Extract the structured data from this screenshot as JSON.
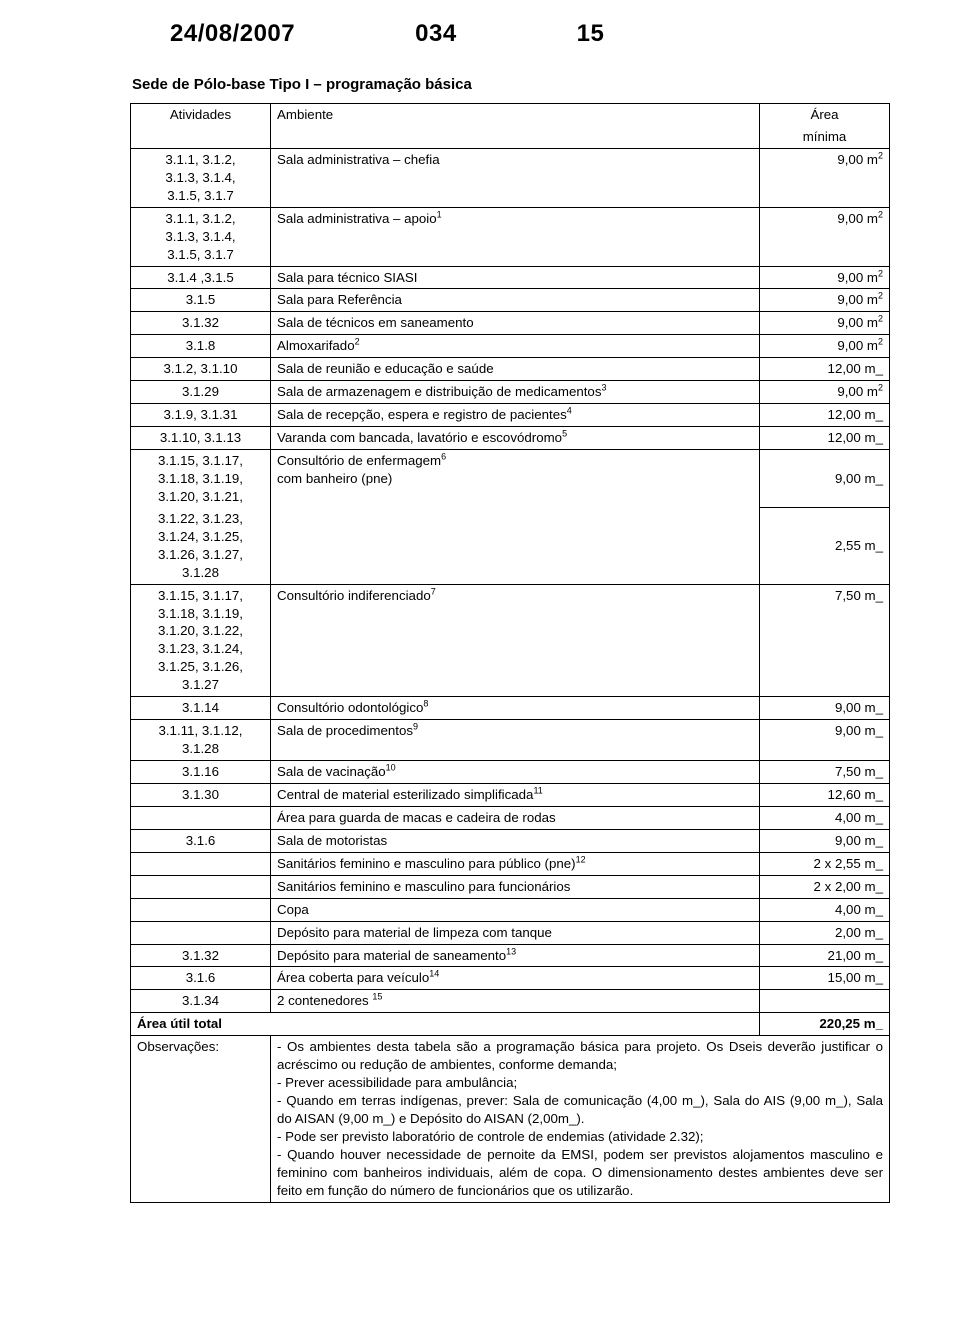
{
  "header": {
    "date": "24/08/2007",
    "doc_no": "034",
    "page": "15"
  },
  "section_title": "Sede de Pólo-base Tipo I – programação básica",
  "columns": {
    "c0": "Atividades",
    "c1": "Ambiente",
    "c2_top": "Área",
    "c2_bottom": "mínima"
  },
  "rows": [
    {
      "act_lines": [
        "3.1.1, 3.1.2,",
        "3.1.3, 3.1.4,",
        "3.1.5, 3.1.7"
      ],
      "amb": "Sala administrativa – chefia",
      "area": "9,00 m",
      "sup": "2"
    },
    {
      "act_lines": [
        "3.1.1, 3.1.2,",
        "3.1.3, 3.1.4,",
        "3.1.5, 3.1.7"
      ],
      "amb": "Sala administrativa – apoio",
      "amb_sup": "1",
      "area": "9,00 m",
      "sup": "2"
    },
    {
      "act": "3.1.4 ,3.1.5",
      "amb": "Sala para técnico SIASI",
      "area": "9,00 m",
      "sup": "2"
    },
    {
      "act": "3.1.5",
      "amb": "Sala para Referência",
      "area": "9,00 m",
      "sup": "2"
    },
    {
      "act": "3.1.32",
      "amb": "Sala de técnicos em saneamento",
      "area": "9,00 m",
      "sup": "2"
    },
    {
      "act": "3.1.8",
      "amb": "Almoxarifado",
      "amb_sup": "2",
      "area": "9,00 m",
      "sup": "2"
    },
    {
      "act": "3.1.2, 3.1.10",
      "amb": "Sala de reunião e educação e saúde",
      "area": "12,00 m_"
    },
    {
      "act": "3.1.29",
      "amb": "Sala de armazenagem e distribuição de medicamentos",
      "amb_sup": "3",
      "area": "9,00 m",
      "sup": "2"
    },
    {
      "act": "3.1.9, 3.1.31",
      "amb": "Sala de recepção, espera e registro de pacientes",
      "amb_sup": "4",
      "area": "12,00 m_"
    },
    {
      "act": "3.1.10, 3.1.13",
      "amb": "Varanda com bancada, lavatório e escovódromo",
      "amb_sup": "5",
      "area": "12,00 m_"
    }
  ],
  "consultorio_enf": {
    "act_lines_1": [
      "3.1.15, 3.1.17,",
      "3.1.18, 3.1.19,",
      "3.1.20, 3.1.21,"
    ],
    "act_lines_2": [
      "3.1.22, 3.1.23,",
      "3.1.24, 3.1.25,",
      "3.1.26, 3.1.27,",
      "3.1.28"
    ],
    "amb_line1": "Consultório de enfermagem",
    "amb_sup": "6",
    "amb_line2": "com banheiro (pne)",
    "area_1": "9,00 m_",
    "area_2": "2,55 m_"
  },
  "consultorio_indif": {
    "act_lines": [
      "3.1.15, 3.1.17,",
      "3.1.18, 3.1.19,",
      "3.1.20, 3.1.22,",
      "3.1.23, 3.1.24,",
      "3.1.25, 3.1.26,",
      "3.1.27"
    ],
    "amb": "Consultório indiferenciado",
    "amb_sup": "7",
    "area": "7,50 m_"
  },
  "rows2": [
    {
      "act": "3.1.14",
      "amb": "Consultório odontológico",
      "amb_sup": "8",
      "area": "9,00 m_"
    },
    {
      "act_lines": [
        "3.1.11, 3.1.12,",
        "3.1.28"
      ],
      "amb": "Sala de procedimentos",
      "amb_sup": "9",
      "area": "9,00 m_"
    },
    {
      "act": "3.1.16",
      "amb": "Sala de vacinação",
      "amb_sup": "10",
      "area": "7,50 m_"
    },
    {
      "act": "3.1.30",
      "amb": "Central de material esterilizado simplificada",
      "amb_sup": "11",
      "area": "12,60 m_"
    },
    {
      "act": "",
      "amb": "Área para guarda de macas e cadeira de rodas",
      "area": "4,00 m_"
    },
    {
      "act": "3.1.6",
      "amb": "Sala de motoristas",
      "area": "9,00 m_"
    },
    {
      "act": "",
      "amb": "Sanitários feminino e masculino para público (pne)",
      "amb_sup": "12",
      "area": "2 x 2,55 m_"
    },
    {
      "act": "",
      "amb": "Sanitários feminino e masculino para funcionários",
      "area": "2 x 2,00 m_"
    },
    {
      "act": "",
      "amb": "Copa",
      "area": "4,00 m_"
    },
    {
      "act": "",
      "amb": "Depósito para material de limpeza com tanque",
      "area": "2,00 m_"
    },
    {
      "act": "3.1.32",
      "amb": "Depósito para material de saneamento",
      "amb_sup": "13",
      "area": "21,00 m_"
    },
    {
      "act": "3.1.6",
      "amb": "Área coberta para veículo",
      "amb_sup": "14",
      "area": "15,00 m_"
    },
    {
      "act": "3.1.34",
      "amb": "2 contenedores ",
      "amb_sup": "15",
      "area": ""
    }
  ],
  "total": {
    "label": "Área útil total",
    "value": "220,25 m_"
  },
  "observacoes": {
    "label": "Observações:",
    "text": "- Os ambientes desta tabela são a programação básica para projeto. Os Dseis deverão justificar o acréscimo ou redução de ambientes, conforme demanda;\n- Prever acessibilidade para ambulância;\n- Quando em terras indígenas, prever: Sala de comunicação (4,00 m_), Sala do AIS (9,00 m_), Sala do AISAN (9,00 m_) e Depósito do AISAN (2,00m_).\n- Pode ser previsto laboratório de controle de endemias (atividade 2.32);\n- Quando houver necessidade de pernoite da EMSI, podem ser previstos alojamentos masculino e feminino com banheiros individuais, além de copa. O dimensionamento destes ambientes deve ser feito em função do número de funcionários que os utilizarão."
  }
}
